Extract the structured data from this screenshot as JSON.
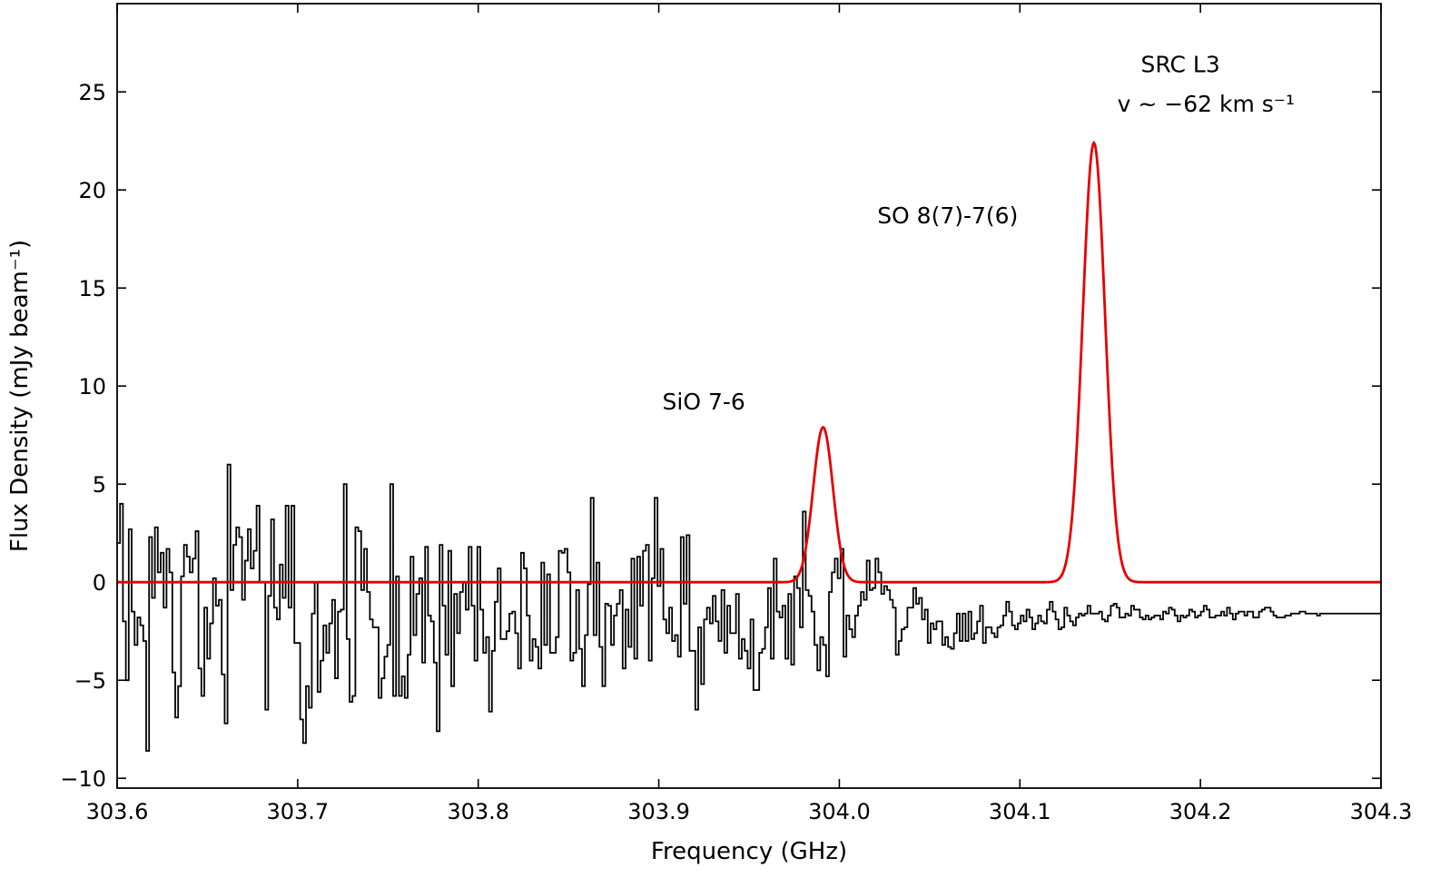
{
  "chart_data": {
    "type": "line",
    "xlabel": "Frequency (GHz)",
    "ylabel": "Flux Density (mJy beam⁻¹)",
    "xlim": [
      303.6,
      304.3
    ],
    "ylim": [
      -10.5,
      29.5
    ],
    "xticks": [
      "303.6",
      "303.7",
      "303.8",
      "303.9",
      "304.0",
      "304.1",
      "304.2",
      "304.3"
    ],
    "yticks": [
      "−10",
      "−5",
      "0",
      "5",
      "10",
      "15",
      "20",
      "25"
    ],
    "grid": false,
    "legend": "none",
    "series": [
      {
        "style": "step",
        "color": "#000000",
        "x_start": 303.6,
        "x_end": 304.3,
        "y": [
          2.0,
          4.0,
          -2.0,
          -5.0,
          2.7,
          -1.5,
          -3.2,
          -1.8,
          -2.2,
          -3.0,
          -8.6,
          2.3,
          -0.8,
          2.8,
          0.5,
          1.5,
          -1.3,
          1.7,
          0.5,
          -4.6,
          -6.9,
          -5.3,
          0.3,
          1.9,
          1.3,
          0.5,
          1.2,
          2.6,
          -4.4,
          -5.8,
          -1.3,
          -3.9,
          -2.1,
          0.2,
          -1.2,
          -0.9,
          -4.7,
          -7.2,
          6.0,
          -0.4,
          1.9,
          2.8,
          2.3,
          -0.9,
          1.1,
          2.7,
          0.7,
          1.6,
          3.9,
          0.0,
          0.0,
          -6.5,
          -0.7,
          3.2,
          -1.3,
          -1.9,
          0.9,
          -0.8,
          3.9,
          -1.3,
          3.9,
          -3.1,
          -3.1,
          -7.0,
          -8.2,
          -5.3,
          -6.4,
          -1.6,
          0.0,
          -5.6,
          -4.0,
          -2.2,
          -3.6,
          -2.1,
          -0.9,
          -4.9,
          -1.5,
          -1.4,
          5.0,
          -2.9,
          -6.1,
          -5.8,
          2.8,
          2.6,
          -0.4,
          1.7,
          -0.5,
          -1.9,
          -2.3,
          -2.3,
          -5.9,
          -4.9,
          -3.8,
          -3.2,
          5.0,
          -5.8,
          0.3,
          -5.8,
          -4.8,
          -5.9,
          -3.7,
          1.3,
          -2.7,
          -0.6,
          0.2,
          -4.1,
          1.8,
          -1.7,
          -2.0,
          -4.1,
          -7.6,
          1.9,
          -1.2,
          -3.7,
          1.6,
          -5.3,
          -0.6,
          -2.6,
          -0.5,
          0.0,
          -1.4,
          1.8,
          -1.2,
          -4.0,
          1.8,
          -1.4,
          -3.6,
          -2.8,
          -6.6,
          -3.5,
          -1.0,
          0.7,
          -2.9,
          -2.9,
          -2.5,
          -1.6,
          -1.5,
          -2.6,
          -4.4,
          1.5,
          0.7,
          -1.7,
          -4.0,
          -2.9,
          -3.3,
          -4.4,
          1.0,
          -3.2,
          0.4,
          -3.6,
          -3.6,
          -2.8,
          1.6,
          1.5,
          1.7,
          0.5,
          -4.0,
          -3.6,
          -0.4,
          -3.4,
          -5.3,
          -2.7,
          -0.1,
          4.3,
          -2.7,
          1.0,
          -3.3,
          -5.3,
          -1.1,
          -1.2,
          -3.2,
          -1.7,
          -1.1,
          -0.4,
          -4.4,
          -1.4,
          -3.3,
          1.2,
          -3.9,
          1.3,
          -1.2,
          1.6,
          1.9,
          -4.0,
          0.2,
          4.3,
          -0.2,
          1.7,
          -1.9,
          -2.6,
          -1.3,
          -3.0,
          -2.7,
          -3.8,
          2.3,
          -1.1,
          2.4,
          -3.5,
          -3.5,
          -6.5,
          -2.3,
          -5.2,
          -1.9,
          -1.3,
          -2.1,
          -0.7,
          -2.0,
          -3.0,
          -0.4,
          -3.6,
          -1.2,
          -2.6,
          -2.6,
          -0.6,
          -3.9,
          -2.9,
          -3.5,
          -4.4,
          -1.9,
          -5.5,
          -5.5,
          -3.6,
          -3.4,
          -2.3,
          -0.3,
          -3.9,
          1.2,
          -1.5,
          -1.8,
          -1.2,
          -3.9,
          -0.6,
          -4.2,
          0.3,
          -0.3,
          -2.3,
          3.6,
          -0.4,
          -0.7,
          -1.5,
          -3.2,
          -4.5,
          -2.8,
          -3.2,
          -4.8,
          -0.5,
          0.5,
          1.2,
          0.2,
          1.7,
          -3.8,
          -1.7,
          -2.4,
          -2.8,
          -1.7,
          -1.2,
          -0.5,
          -0.9,
          1.1,
          -0.4,
          -0.3,
          1.2,
          0.5,
          -0.6,
          -0.2,
          -0.4,
          -0.9,
          -1.3,
          -3.7,
          -3.0,
          -2.4,
          -2.3,
          -1.3,
          -1.3,
          -0.3,
          -1.1,
          -0.8,
          -1.9,
          -1.4,
          -3.1,
          -2.1,
          -2.4,
          -2.0,
          -2.0,
          -3.2,
          -2.8,
          -3.3,
          -3.4,
          -2.6,
          -1.6,
          -3.0,
          -1.6,
          -3.0,
          -1.5,
          -2.9,
          -2.6,
          -2.0,
          -1.2,
          -3.1,
          -2.3,
          -2.3,
          -2.6,
          -2.8,
          -2.3,
          -2.2,
          -1.7,
          -1.0,
          -1.5,
          -2.2,
          -2.4,
          -2.1,
          -1.7,
          -2.0,
          -1.4,
          -1.8,
          -2.4,
          -2.1,
          -1.7,
          -2.0,
          -2.1,
          -1.4,
          -1.0,
          -1.5,
          -1.9,
          -2.4,
          -2.3,
          -1.3,
          -1.7,
          -2.0,
          -2.2,
          -1.8,
          -1.6,
          -1.7,
          -1.6,
          -1.2,
          -1.6,
          -1.6,
          -1.6,
          -1.5,
          -1.9,
          -2.0,
          -1.7,
          -1.2,
          -1.1,
          -1.3,
          -1.8,
          -1.8,
          -1.6,
          -1.7,
          -1.2,
          -1.4,
          -1.4,
          -1.8,
          -1.9,
          -1.7,
          -1.9,
          -1.8,
          -1.7,
          -1.7,
          -1.9,
          -1.5,
          -1.6,
          -1.3,
          -1.4,
          -1.7,
          -2.0,
          -1.7,
          -1.8,
          -1.7,
          -1.4,
          -1.5,
          -1.8,
          -1.7,
          -1.5,
          -1.2,
          -1.4,
          -1.8,
          -1.8,
          -1.7,
          -1.7,
          -1.5,
          -1.7,
          -1.3,
          -1.6,
          -1.9,
          -1.6,
          -1.5,
          -1.5,
          -1.7,
          -1.5,
          -1.5,
          -1.8,
          -1.8,
          -1.5,
          -1.4,
          -1.3,
          -1.3,
          -1.5,
          -1.7,
          -1.8,
          -1.8,
          -1.8,
          -1.7,
          -1.7,
          -1.6,
          -1.6,
          -1.6,
          -1.5,
          -1.5,
          -1.6,
          -1.6,
          -1.6,
          -1.6,
          -1.7,
          -1.6,
          -1.6,
          -1.6,
          -1.6,
          -1.6,
          -1.6,
          -1.6,
          -1.6,
          -1.6,
          -1.6,
          -1.6,
          -1.6,
          -1.6,
          -1.6,
          -1.6,
          -1.6,
          -1.6,
          -1.6,
          -1.6,
          -1.6,
          -1.6
        ]
      },
      {
        "style": "gaussian-fit",
        "color": "#e60000",
        "baseline": 0,
        "components": [
          {
            "center": 303.991,
            "amplitude": 7.9,
            "sigma": 0.0055
          },
          {
            "center": 304.141,
            "amplitude": 22.4,
            "sigma": 0.0062
          }
        ]
      }
    ],
    "annotations": [
      {
        "text": "SiO 7-6",
        "x": 303.902,
        "y": 8.8
      },
      {
        "text": "SO 8(7)-7(6)",
        "x": 304.021,
        "y": 18.3
      },
      {
        "text": "SRC L3",
        "x": 304.167,
        "y": 26.0
      },
      {
        "text": "v ~ −62 km s⁻¹",
        "x": 304.154,
        "y": 24.0
      }
    ]
  }
}
